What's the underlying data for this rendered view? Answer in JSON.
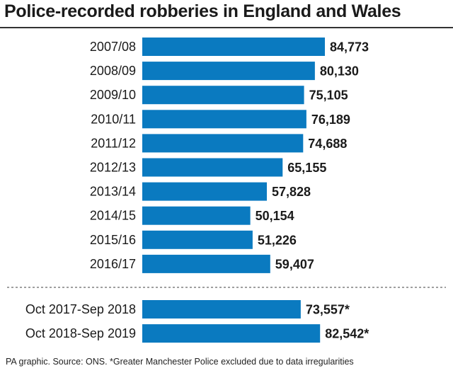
{
  "colors": {
    "bar": "#0a7ac0",
    "divider": "#666666"
  },
  "chart_data": {
    "type": "bar",
    "orientation": "horizontal",
    "title": "Police-recorded robberies in England and Wales",
    "grid": false,
    "legend": "none",
    "xlim": [
      0,
      90000
    ],
    "groups": [
      {
        "categories": [
          "2007/08",
          "2008/09",
          "2009/10",
          "2010/11",
          "2011/12",
          "2012/13",
          "2013/14",
          "2014/15",
          "2015/16",
          "2016/17"
        ],
        "values": [
          84773,
          80130,
          75105,
          76189,
          74688,
          65155,
          57828,
          50154,
          51226,
          59407
        ],
        "value_labels": [
          "84,773",
          "80,130",
          "75,105",
          "76,189",
          "74,688",
          "65,155",
          "57,828",
          "50,154",
          "51,226",
          "59,407"
        ]
      },
      {
        "categories": [
          "Oct 2017-Sep 2018",
          "Oct 2018-Sep 2019"
        ],
        "values": [
          73557,
          82542
        ],
        "value_labels": [
          "73,557*",
          "82,542*"
        ]
      }
    ]
  },
  "source": "PA graphic. Source: ONS. *Greater Manchester Police excluded due to data irregularities"
}
